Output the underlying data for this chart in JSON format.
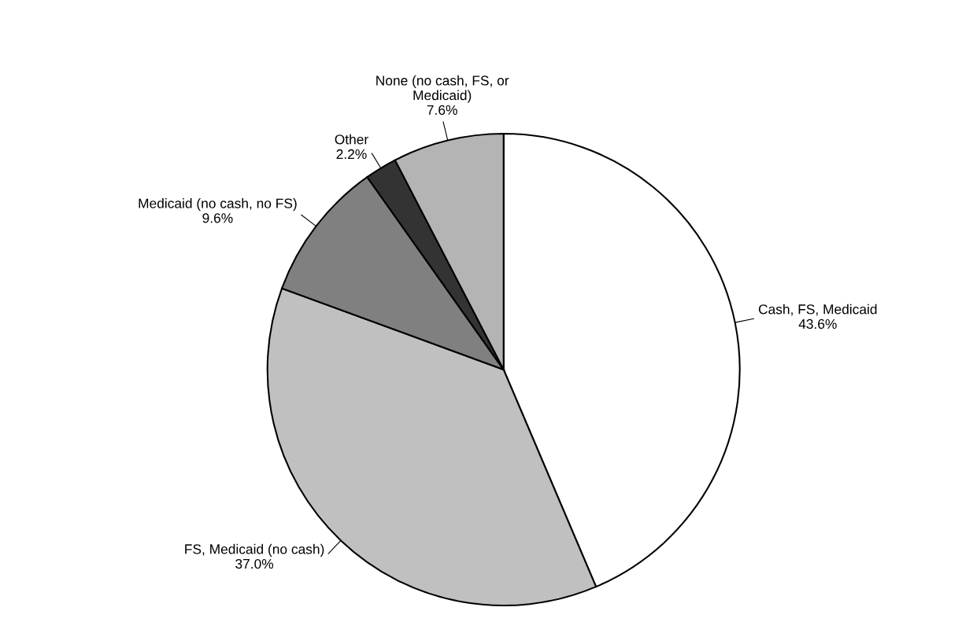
{
  "chart_data": {
    "type": "pie",
    "categories": [
      "Cash, FS, Medicaid",
      "FS, Medicaid (no cash)",
      "Medicaid (no cash, no FS)",
      "Other",
      "None (no cash, FS, or\nMedicaid)"
    ],
    "values": [
      43.6,
      37.0,
      9.6,
      2.2,
      7.6
    ],
    "value_labels": [
      "43.6%",
      "37.0%",
      "9.6%",
      "2.2%",
      "7.6%"
    ],
    "colors": [
      "#ffffff",
      "#c0c0c0",
      "#808080",
      "#333333",
      "#b4b4b4"
    ]
  }
}
